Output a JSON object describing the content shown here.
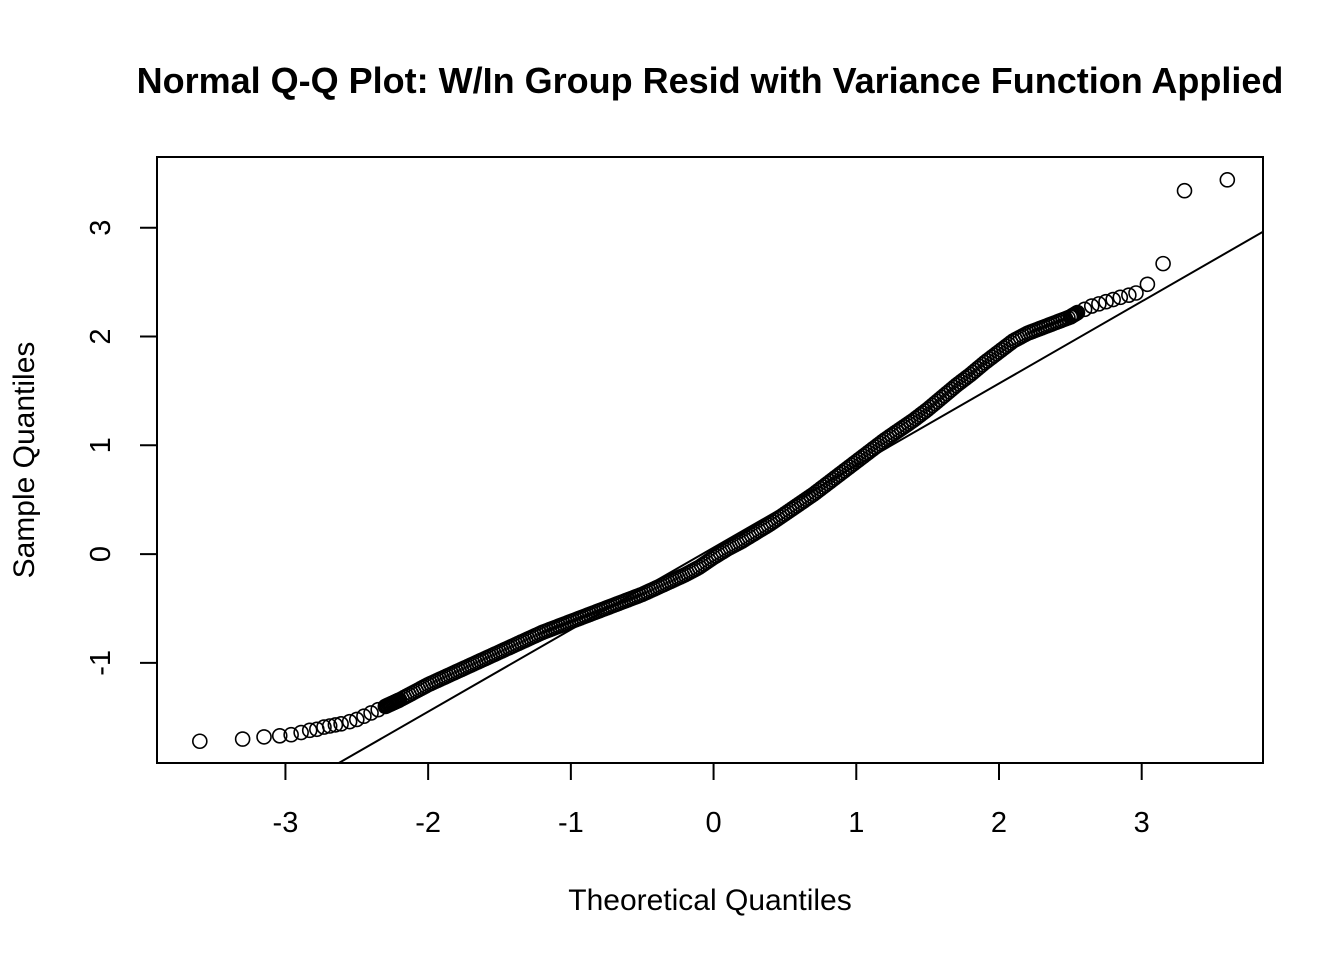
{
  "chart_data": {
    "type": "scatter",
    "title": "Normal Q-Q Plot: W/In Group Resid with Variance Function Applied",
    "xlabel": "Theoretical Quantiles",
    "ylabel": "Sample Quantiles",
    "xlim": [
      -3.9,
      3.85
    ],
    "ylim": [
      -1.92,
      3.65
    ],
    "x_ticks": [
      -3,
      -2,
      -1,
      0,
      1,
      2,
      3
    ],
    "y_ticks": [
      -1,
      0,
      1,
      2,
      3
    ],
    "x_tick_labels": [
      "-3",
      "-2",
      "-1",
      "0",
      "1",
      "2",
      "3"
    ],
    "y_tick_labels": [
      "-1",
      "0",
      "1",
      "2",
      "3"
    ],
    "grid": false,
    "legend": "none",
    "reference_line": {
      "slope": 0.754,
      "intercept": 0.06
    },
    "series": [
      {
        "marker": "open-circle",
        "points": [
          [
            -3.6,
            -1.72
          ],
          [
            -3.3,
            -1.7
          ],
          [
            -3.15,
            -1.68
          ],
          [
            -3.04,
            -1.67
          ],
          [
            -2.96,
            -1.66
          ],
          [
            -2.89,
            -1.64
          ],
          [
            -2.83,
            -1.62
          ],
          [
            -2.78,
            -1.61
          ],
          [
            -2.73,
            -1.59
          ],
          [
            -2.69,
            -1.58
          ],
          [
            -2.65,
            -1.57
          ],
          [
            -2.61,
            -1.56
          ],
          [
            -2.55,
            -1.54
          ],
          [
            -2.5,
            -1.52
          ],
          [
            -2.45,
            -1.49
          ],
          [
            -2.4,
            -1.46
          ],
          [
            -2.35,
            -1.43
          ],
          [
            -2.3,
            -1.4
          ],
          [
            -2.25,
            -1.37
          ],
          [
            -2.2,
            -1.34
          ],
          [
            -2.1,
            -1.27
          ],
          [
            -2.0,
            -1.2
          ],
          [
            -1.9,
            -1.14
          ],
          [
            -1.8,
            -1.08
          ],
          [
            -1.7,
            -1.02
          ],
          [
            -1.6,
            -0.96
          ],
          [
            -1.5,
            -0.9
          ],
          [
            -1.4,
            -0.84
          ],
          [
            -1.3,
            -0.78
          ],
          [
            -1.2,
            -0.72
          ],
          [
            -1.1,
            -0.67
          ],
          [
            -1.0,
            -0.62
          ],
          [
            -0.9,
            -0.57
          ],
          [
            -0.8,
            -0.52
          ],
          [
            -0.7,
            -0.47
          ],
          [
            -0.6,
            -0.42
          ],
          [
            -0.5,
            -0.37
          ],
          [
            -0.4,
            -0.31
          ],
          [
            -0.3,
            -0.25
          ],
          [
            -0.2,
            -0.19
          ],
          [
            -0.1,
            -0.12
          ],
          [
            0.0,
            -0.03
          ],
          [
            0.1,
            0.05
          ],
          [
            0.2,
            0.12
          ],
          [
            0.3,
            0.2
          ],
          [
            0.4,
            0.28
          ],
          [
            0.5,
            0.37
          ],
          [
            0.6,
            0.46
          ],
          [
            0.7,
            0.55
          ],
          [
            0.8,
            0.65
          ],
          [
            0.9,
            0.75
          ],
          [
            1.0,
            0.85
          ],
          [
            1.1,
            0.95
          ],
          [
            1.2,
            1.05
          ],
          [
            1.3,
            1.14
          ],
          [
            1.4,
            1.23
          ],
          [
            1.5,
            1.33
          ],
          [
            1.6,
            1.44
          ],
          [
            1.7,
            1.55
          ],
          [
            1.8,
            1.65
          ],
          [
            1.9,
            1.76
          ],
          [
            2.0,
            1.86
          ],
          [
            2.1,
            1.96
          ],
          [
            2.2,
            2.03
          ],
          [
            2.3,
            2.08
          ],
          [
            2.4,
            2.13
          ],
          [
            2.5,
            2.18
          ],
          [
            2.55,
            2.22
          ],
          [
            2.6,
            2.25
          ],
          [
            2.65,
            2.28
          ],
          [
            2.7,
            2.3
          ],
          [
            2.75,
            2.32
          ],
          [
            2.8,
            2.34
          ],
          [
            2.85,
            2.36
          ],
          [
            2.91,
            2.38
          ],
          [
            2.96,
            2.4
          ],
          [
            3.04,
            2.48
          ],
          [
            3.15,
            2.67
          ],
          [
            3.3,
            3.34
          ],
          [
            3.6,
            3.44
          ]
        ]
      }
    ]
  }
}
